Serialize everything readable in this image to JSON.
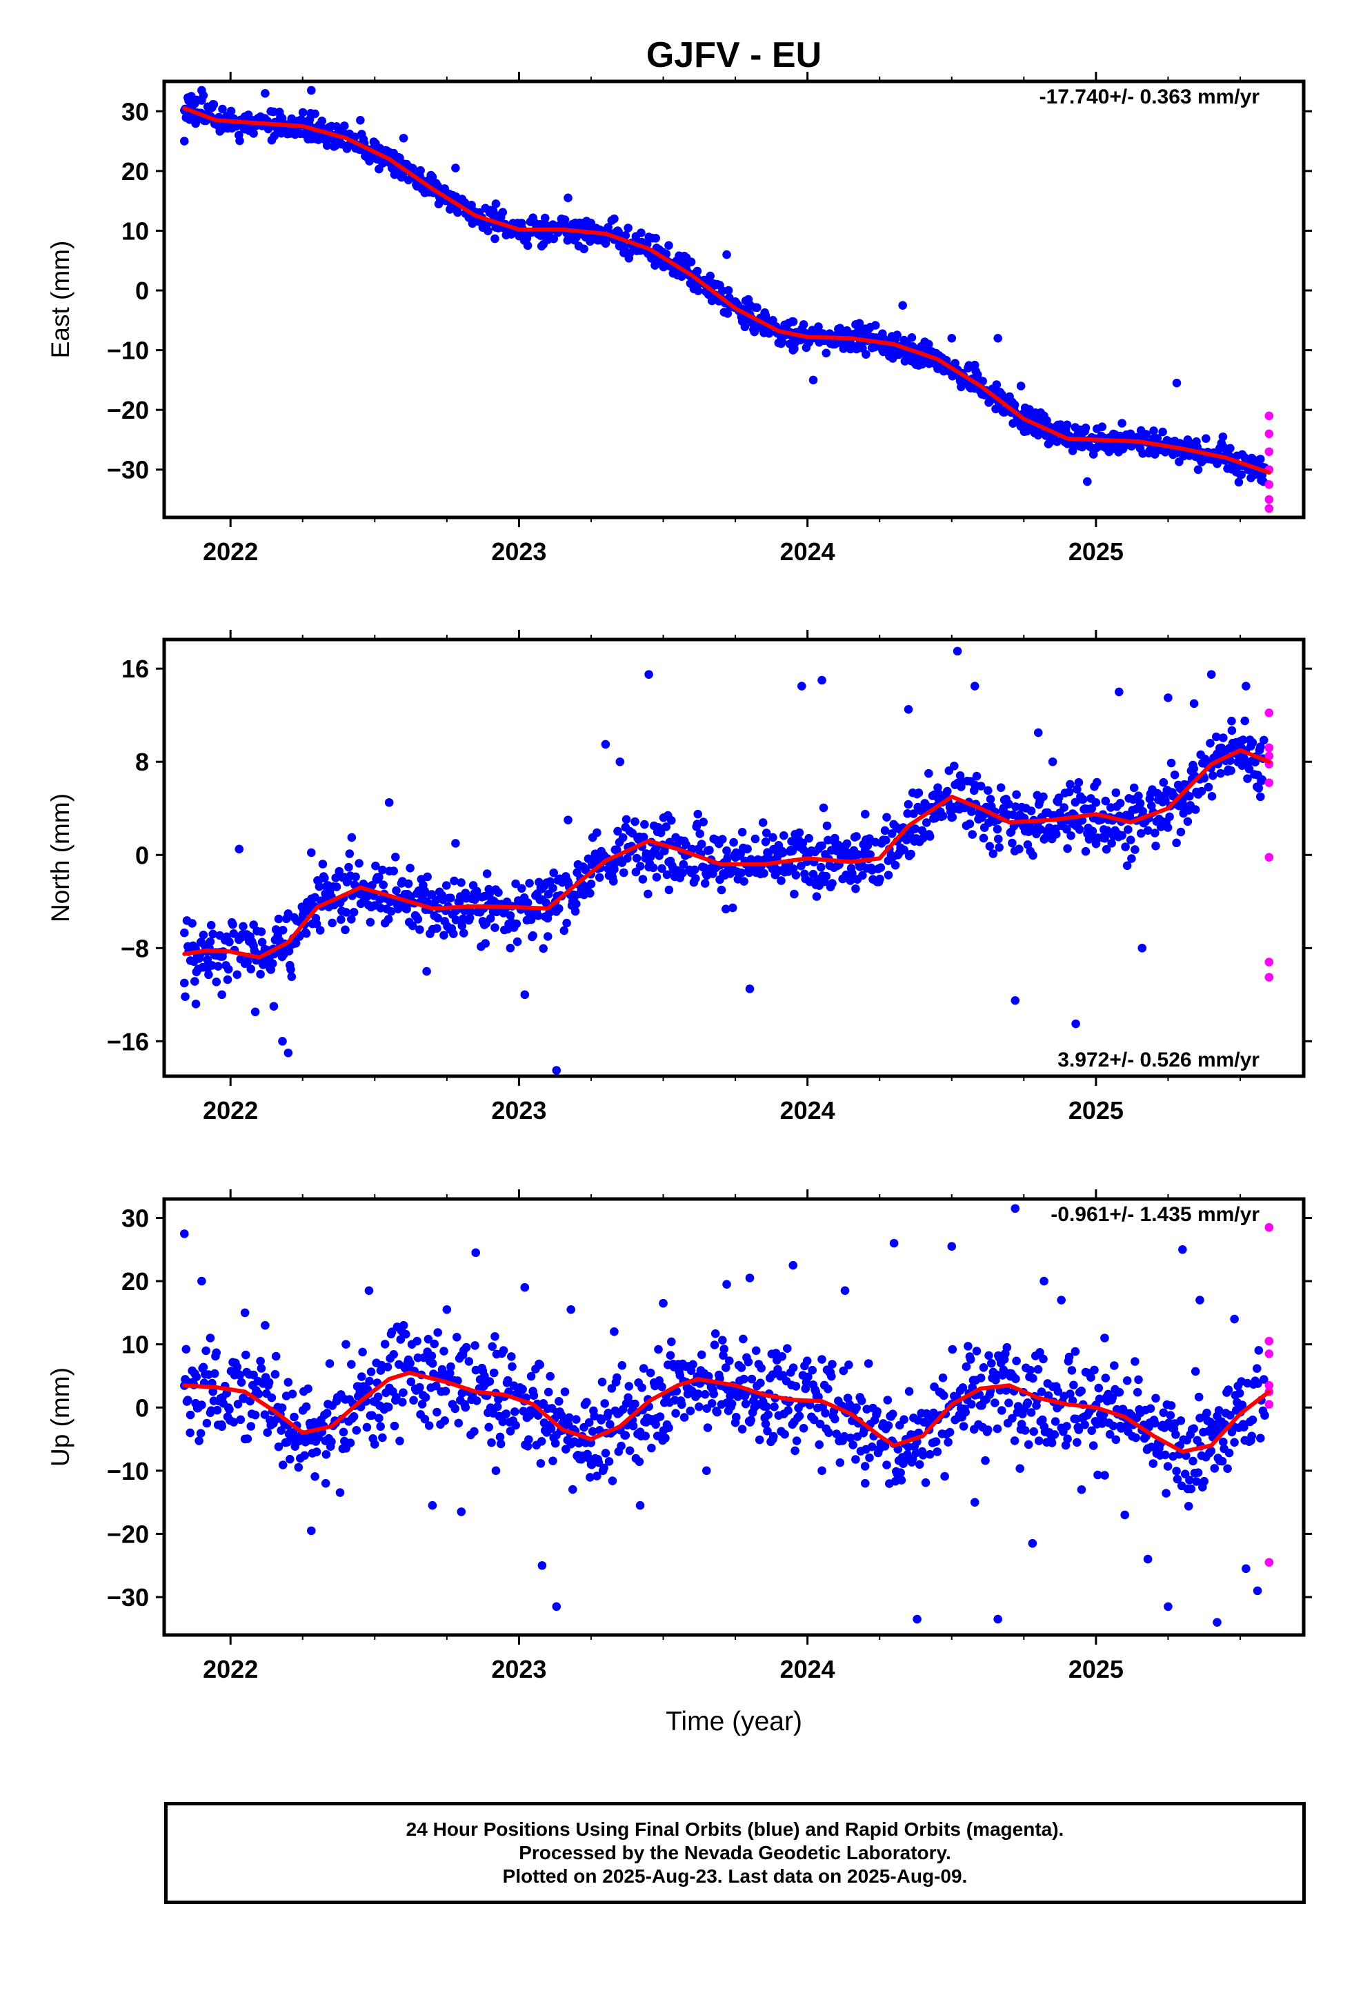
{
  "title": "GJFV - EU",
  "x_axis_label": "Time (year)",
  "footer": {
    "line1": "24 Hour Positions Using Final Orbits (blue) and Rapid Orbits (magenta).",
    "line2": "Processed by the Nevada Geodetic Laboratory.",
    "line3": "Plotted on 2025-Aug-23. Last data on 2025-Aug-09."
  },
  "colors": {
    "final_orbits": "#0000ff",
    "rapid_orbits": "#ff00ff",
    "fit": "#ff0000",
    "frame": "#000000"
  },
  "chart_data": [
    {
      "type": "scatter",
      "ylabel": "East (mm)",
      "rate_text": "-17.740+/- 0.363 mm/yr",
      "rate_position": "top-right",
      "xlim": [
        2021.77,
        2025.72
      ],
      "ylim": [
        -38,
        35
      ],
      "xticks": [
        2022,
        2023,
        2024,
        2025
      ],
      "xtick_labels": [
        "2022",
        "2023",
        "2024",
        "2025"
      ],
      "yticks": [
        -30,
        -20,
        -10,
        0,
        10,
        20,
        30
      ],
      "ytick_labels": [
        "−30",
        "−20",
        "−10",
        "0",
        "10",
        "20",
        "30"
      ],
      "grid": false,
      "fit_curve": {
        "x": [
          2021.84,
          2021.95,
          2022.1,
          2022.25,
          2022.4,
          2022.55,
          2022.7,
          2022.85,
          2023.0,
          2023.15,
          2023.3,
          2023.45,
          2023.6,
          2023.75,
          2023.9,
          2024.0,
          2024.15,
          2024.3,
          2024.45,
          2024.6,
          2024.75,
          2024.9,
          2025.0,
          2025.15,
          2025.3,
          2025.45,
          2025.6
        ],
        "y": [
          30.5,
          28.5,
          28.0,
          27.5,
          25.5,
          22.0,
          17.0,
          12.5,
          10.2,
          10.2,
          9.5,
          7.0,
          2.5,
          -3.0,
          -6.8,
          -7.8,
          -8.0,
          -9.0,
          -11.5,
          -16.0,
          -21.5,
          -24.8,
          -25.0,
          -25.3,
          -26.5,
          -28.0,
          -30.5
        ]
      },
      "final_orbits": {
        "x": [
          2021.84,
          2021.9,
          2021.96,
          2022.05,
          2022.12,
          2022.2,
          2022.28,
          2022.35,
          2022.45,
          2022.5,
          2022.6,
          2022.7,
          2022.78,
          2022.85,
          2022.92,
          2023.0,
          2023.1,
          2023.17,
          2023.25,
          2023.33,
          2023.42,
          2023.5,
          2023.58,
          2023.65,
          2023.72,
          2023.8,
          2023.88,
          2023.95,
          2024.02,
          2024.1,
          2024.18,
          2024.26,
          2024.33,
          2024.42,
          2024.5,
          2024.58,
          2024.66,
          2024.74,
          2024.82,
          2024.9,
          2024.97,
          2025.05,
          2025.12,
          2025.2,
          2025.28,
          2025.36,
          2025.44,
          2025.52,
          2025.58
        ],
        "y": [
          25.0,
          33.5,
          29.0,
          27.0,
          33.0,
          26.5,
          33.5,
          27.5,
          28.5,
          24.0,
          25.5,
          19.0,
          20.5,
          12.5,
          14.5,
          11.0,
          8.5,
          15.5,
          11.0,
          12.0,
          7.5,
          4.0,
          5.5,
          1.5,
          6.0,
          -4.0,
          -5.0,
          -10.0,
          -15.0,
          -7.5,
          -5.5,
          -10.0,
          -2.5,
          -9.0,
          -8.0,
          -12.5,
          -8.0,
          -16.0,
          -21.0,
          -22.5,
          -32.0,
          -26.0,
          -24.0,
          -23.5,
          -15.5,
          -27.0,
          -24.5,
          -28.5,
          -32.0
        ]
      },
      "rapid_orbits": {
        "x": [
          2025.6,
          2025.6,
          2025.6,
          2025.6,
          2025.6,
          2025.6,
          2025.6
        ],
        "y": [
          -21.0,
          -24.0,
          -27.0,
          -30.0,
          -32.5,
          -35.0,
          -36.5
        ]
      }
    },
    {
      "type": "scatter",
      "ylabel": "North (mm)",
      "rate_text": "3.972+/- 0.526 mm/yr",
      "rate_position": "bottom-right",
      "xlim": [
        2021.77,
        2025.72
      ],
      "ylim": [
        -19,
        18.5
      ],
      "xticks": [
        2022,
        2023,
        2024,
        2025
      ],
      "xtick_labels": [
        "2022",
        "2023",
        "2024",
        "2025"
      ],
      "yticks": [
        -16,
        -8,
        0,
        8,
        16
      ],
      "ytick_labels": [
        "−16",
        "−8",
        "0",
        "8",
        "16"
      ],
      "grid": false,
      "fit_curve": {
        "x": [
          2021.84,
          2021.92,
          2022.0,
          2022.1,
          2022.2,
          2022.3,
          2022.45,
          2022.55,
          2022.7,
          2022.85,
          2023.0,
          2023.1,
          2023.2,
          2023.3,
          2023.45,
          2023.55,
          2023.7,
          2023.85,
          2024.0,
          2024.15,
          2024.25,
          2024.35,
          2024.5,
          2024.6,
          2024.7,
          2024.85,
          2025.0,
          2025.12,
          2025.25,
          2025.4,
          2025.5,
          2025.6
        ],
        "y": [
          -8.5,
          -8.2,
          -8.3,
          -8.8,
          -7.5,
          -4.5,
          -2.8,
          -3.5,
          -4.6,
          -4.4,
          -4.5,
          -4.6,
          -2.5,
          -0.5,
          1.2,
          0.5,
          -0.8,
          -0.8,
          -0.3,
          -0.6,
          -0.3,
          2.5,
          5.0,
          4.0,
          2.8,
          3.0,
          3.5,
          2.8,
          4.0,
          7.8,
          9.0,
          8.0
        ]
      },
      "final_orbits": {
        "x": [
          2021.84,
          2021.88,
          2021.92,
          2021.97,
          2022.03,
          2022.08,
          2022.15,
          2022.18,
          2022.2,
          2022.28,
          2022.42,
          2022.55,
          2022.68,
          2022.78,
          2022.88,
          2022.97,
          2023.02,
          2023.1,
          2023.13,
          2023.17,
          2023.25,
          2023.3,
          2023.35,
          2023.45,
          2023.52,
          2023.62,
          2023.72,
          2023.8,
          2023.88,
          2023.98,
          2024.05,
          2024.12,
          2024.2,
          2024.28,
          2024.35,
          2024.42,
          2024.52,
          2024.58,
          2024.66,
          2024.72,
          2024.8,
          2024.85,
          2024.93,
          2025.0,
          2025.08,
          2025.16,
          2025.25,
          2025.34,
          2025.4,
          2025.47,
          2025.52,
          2025.57
        ],
        "y": [
          -11.0,
          -12.8,
          -9.0,
          -12.0,
          0.5,
          -6.0,
          -13.0,
          -16.0,
          -17.0,
          0.2,
          1.5,
          4.5,
          -10.0,
          1.0,
          -6.0,
          -8.0,
          -12.0,
          -7.0,
          -18.5,
          3.0,
          -2.5,
          9.5,
          8.0,
          15.5,
          -3.0,
          3.5,
          -0.5,
          -11.5,
          1.5,
          14.5,
          15.0,
          0.5,
          3.5,
          -0.5,
          12.5,
          7.0,
          17.5,
          14.5,
          3.0,
          -12.5,
          10.5,
          8.0,
          -14.5,
          4.5,
          14.0,
          -8.0,
          13.5,
          13.0,
          15.5,
          11.5,
          14.5,
          5.0
        ]
      },
      "rapid_orbits": {
        "x": [
          2025.6,
          2025.6,
          2025.6,
          2025.6,
          2025.6,
          2025.6,
          2025.6,
          2025.6
        ],
        "y": [
          12.2,
          9.2,
          7.8,
          6.2,
          -0.2,
          -9.2,
          -10.5,
          8.5
        ]
      }
    },
    {
      "type": "scatter",
      "ylabel": "Up (mm)",
      "xlabel": "Time (year)",
      "rate_text": "-0.961+/- 1.435 mm/yr",
      "rate_position": "top-right",
      "xlim": [
        2021.77,
        2025.72
      ],
      "ylim": [
        -36,
        33
      ],
      "xticks": [
        2022,
        2023,
        2024,
        2025
      ],
      "xtick_labels": [
        "2022",
        "2023",
        "2024",
        "2025"
      ],
      "yticks": [
        -30,
        -20,
        -10,
        0,
        10,
        20,
        30
      ],
      "ytick_labels": [
        "−30",
        "−20",
        "−10",
        "0",
        "10",
        "20",
        "30"
      ],
      "grid": false,
      "fit_curve": {
        "x": [
          2021.84,
          2021.95,
          2022.05,
          2022.15,
          2022.25,
          2022.35,
          2022.45,
          2022.55,
          2022.62,
          2022.75,
          2022.85,
          2022.95,
          2023.05,
          2023.15,
          2023.25,
          2023.35,
          2023.45,
          2023.55,
          2023.62,
          2023.75,
          2023.85,
          2023.95,
          2024.05,
          2024.15,
          2024.25,
          2024.3,
          2024.4,
          2024.5,
          2024.6,
          2024.7,
          2024.8,
          2024.9,
          2025.0,
          2025.1,
          2025.2,
          2025.3,
          2025.4,
          2025.5,
          2025.6
        ],
        "y": [
          3.5,
          3.2,
          2.5,
          -0.5,
          -4.0,
          -3.0,
          1.0,
          4.5,
          5.5,
          4.0,
          2.5,
          2.0,
          0.5,
          -3.5,
          -5.0,
          -3.0,
          1.0,
          3.5,
          4.5,
          3.5,
          2.0,
          1.2,
          1.0,
          -1.0,
          -4.5,
          -6.0,
          -4.5,
          0.5,
          3.0,
          3.5,
          1.5,
          0.5,
          0.0,
          -1.5,
          -4.5,
          -7.0,
          -6.0,
          -1.0,
          2.5
        ]
      },
      "final_orbits": {
        "x": [
          2021.84,
          2021.86,
          2021.9,
          2021.93,
          2021.97,
          2022.05,
          2022.12,
          2022.2,
          2022.28,
          2022.33,
          2022.4,
          2022.48,
          2022.52,
          2022.6,
          2022.7,
          2022.75,
          2022.8,
          2022.85,
          2022.92,
          2023.02,
          2023.08,
          2023.13,
          2023.18,
          2023.25,
          2023.33,
          2023.42,
          2023.5,
          2023.58,
          2023.65,
          2023.72,
          2023.8,
          2023.88,
          2023.95,
          2024.05,
          2024.13,
          2024.2,
          2024.3,
          2024.38,
          2024.45,
          2024.5,
          2024.58,
          2024.66,
          2024.72,
          2024.78,
          2024.82,
          2024.88,
          2024.95,
          2025.03,
          2025.1,
          2025.18,
          2025.25,
          2025.3,
          2025.36,
          2025.42,
          2025.48,
          2025.52,
          2025.56
        ],
        "y": [
          27.5,
          -4.0,
          20.0,
          11.0,
          -3.0,
          15.0,
          13.0,
          4.0,
          -19.5,
          -12.0,
          10.0,
          18.5,
          -3.0,
          13.0,
          -15.5,
          15.5,
          -16.5,
          24.5,
          -10.0,
          19.0,
          -25.0,
          -31.5,
          15.5,
          -9.0,
          12.0,
          -15.5,
          16.5,
          4.0,
          -10.0,
          19.5,
          20.5,
          -5.0,
          22.5,
          -10.0,
          18.5,
          -12.0,
          26.0,
          -33.5,
          -7.0,
          25.5,
          -15.0,
          -33.5,
          31.5,
          -21.5,
          20.0,
          17.0,
          -13.0,
          11.0,
          -17.0,
          -24.0,
          -31.5,
          25.0,
          17.0,
          -34.0,
          14.0,
          -25.5,
          -29.0
        ]
      },
      "rapid_orbits": {
        "x": [
          2025.6,
          2025.6,
          2025.6,
          2025.6,
          2025.6,
          2025.6,
          2025.6
        ],
        "y": [
          28.5,
          10.5,
          8.5,
          3.5,
          2.5,
          0.5,
          -24.5
        ]
      }
    }
  ]
}
